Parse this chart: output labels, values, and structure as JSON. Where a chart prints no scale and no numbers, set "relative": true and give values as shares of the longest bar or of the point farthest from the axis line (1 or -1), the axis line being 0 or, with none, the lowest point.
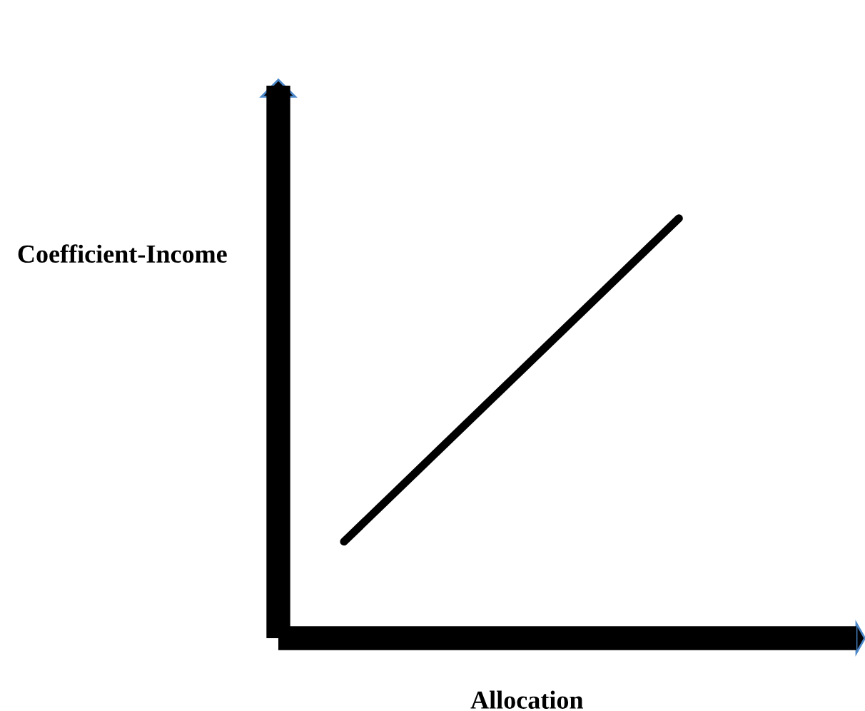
{
  "chart_data": {
    "type": "line",
    "relative": true,
    "xlabel": "Allocation",
    "ylabel": "Coefficient-Income",
    "categories": [
      null,
      null
    ],
    "series": [
      {
        "color": "#000000",
        "values": [
          0.23,
          1
        ]
      }
    ],
    "marker": "none",
    "line_style": "solid"
  }
}
